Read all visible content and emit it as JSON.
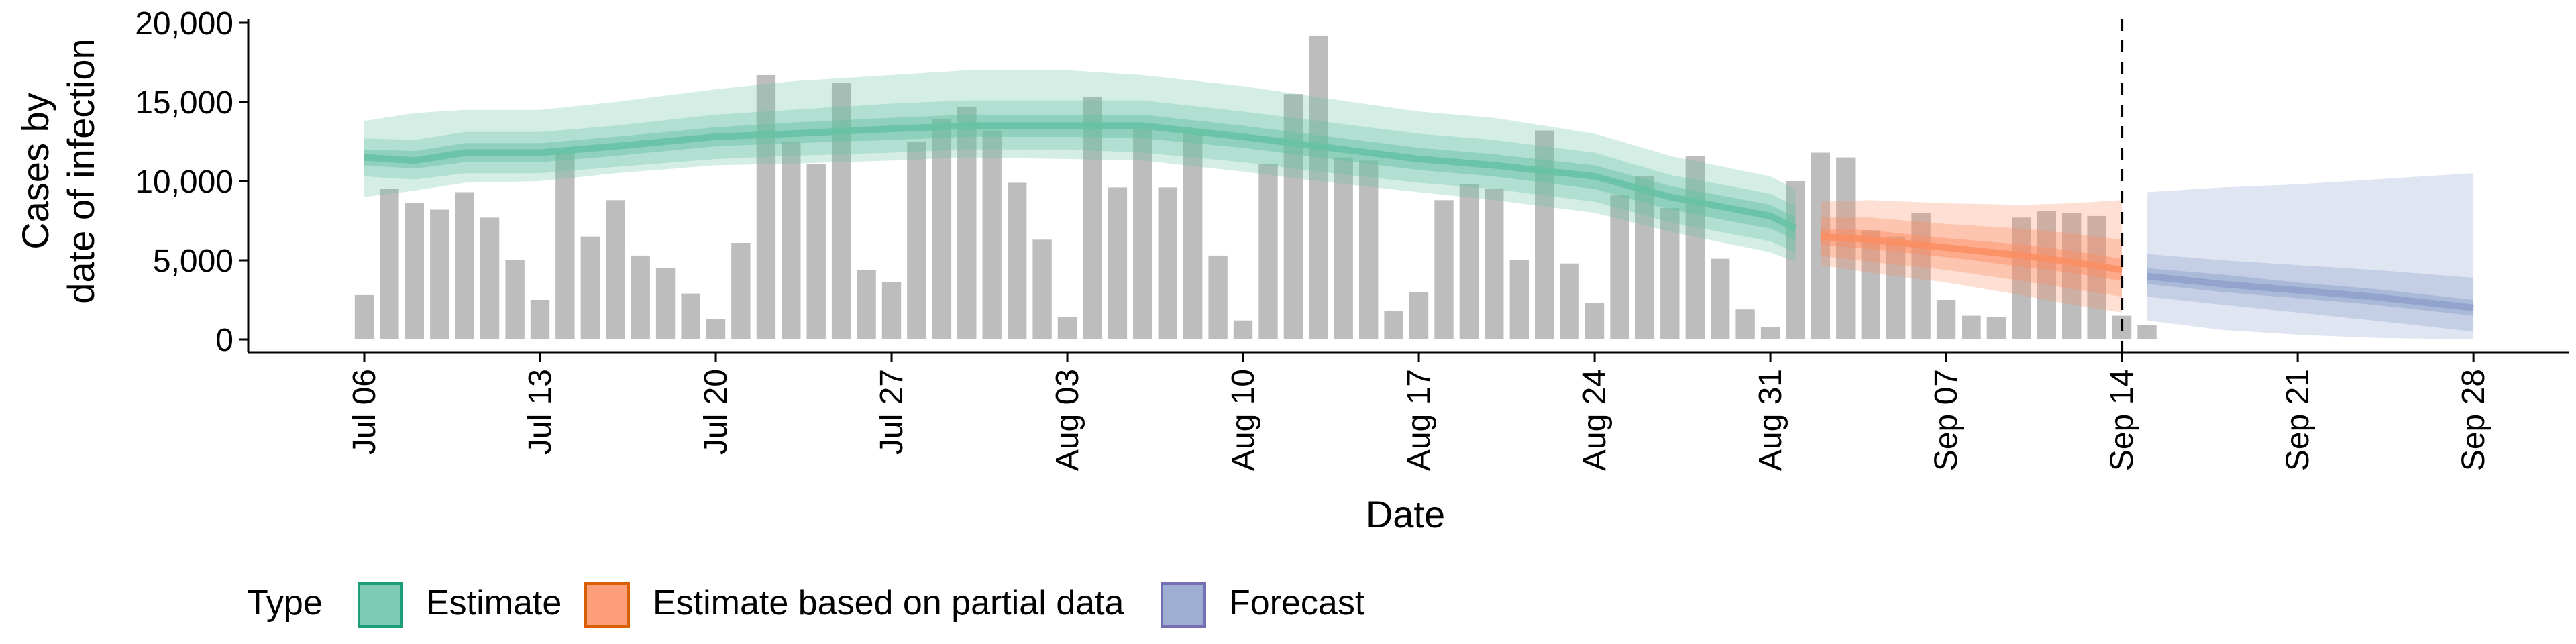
{
  "chart_data": {
    "type": "bar+ribbon",
    "xlabel": "Date",
    "ylabel_lines": [
      "Cases by",
      "date of infection"
    ],
    "ylim": [
      0,
      20000
    ],
    "y_ticks": [
      0,
      5000,
      10000,
      15000,
      20000
    ],
    "y_tick_labels": [
      "0",
      "5,000",
      "10,000",
      "15,000",
      "20,000"
    ],
    "x_start_date": "2020-07-06",
    "x_ticks": [
      0,
      7,
      14,
      21,
      28,
      35,
      42,
      49,
      56,
      63,
      70,
      77,
      84
    ],
    "x_tick_labels": [
      "Jul 06",
      "Jul 13",
      "Jul 20",
      "Jul 27",
      "Aug 03",
      "Aug 10",
      "Aug 17",
      "Aug 24",
      "Aug 31",
      "Sep 07",
      "Sep 14",
      "Sep 21",
      "Sep 28"
    ],
    "vline_day": 70,
    "grid": false,
    "bar_color": "#bdbdbd",
    "reported_cases": [
      2800,
      9500,
      8600,
      8200,
      9300,
      7700,
      5000,
      2500,
      11900,
      6500,
      8800,
      5300,
      4500,
      2900,
      1300,
      6100,
      16700,
      12500,
      11100,
      16200,
      4400,
      3600,
      12500,
      13900,
      14700,
      13200,
      9900,
      6300,
      1400,
      15300,
      9600,
      13300,
      9600,
      13200,
      5300,
      1200,
      11100,
      15500,
      19200,
      11500,
      11300,
      1800,
      3000,
      8800,
      9800,
      9500,
      5000,
      13200,
      4800,
      2300,
      9100,
      10300,
      8300,
      11600,
      5100,
      1900,
      800,
      10000,
      11800,
      11500,
      6900,
      6500,
      8000,
      2500,
      1500,
      1400,
      7700,
      8100,
      8000,
      7800,
      1500,
      900
    ],
    "legend_title": "Type",
    "legend_placement": "bottom",
    "series": [
      {
        "name": "Estimate",
        "fill": "#66c2a5",
        "line": "#1b9e77",
        "days": [
          0,
          2,
          4,
          7,
          10,
          14,
          17,
          21,
          24,
          28,
          31,
          35,
          38,
          42,
          45,
          49,
          52,
          56,
          57
        ],
        "median": [
          11500,
          11300,
          11800,
          11800,
          12200,
          12800,
          13000,
          13300,
          13500,
          13500,
          13500,
          12800,
          12200,
          11400,
          11000,
          10300,
          9000,
          7800,
          7000
        ],
        "ci50_low": [
          11000,
          10800,
          11200,
          11200,
          11600,
          12200,
          12400,
          12600,
          12800,
          12800,
          12700,
          12100,
          11500,
          10700,
          10300,
          9500,
          8200,
          7000,
          6300
        ],
        "ci50_high": [
          12000,
          11900,
          12400,
          12400,
          12800,
          13400,
          13700,
          14000,
          14200,
          14200,
          14200,
          13500,
          12900,
          12100,
          11700,
          11000,
          9700,
          8500,
          7700
        ],
        "ci90_low": [
          10300,
          10100,
          10500,
          10500,
          10900,
          11400,
          11600,
          11800,
          12000,
          12000,
          11800,
          11200,
          10600,
          9900,
          9500,
          8700,
          7400,
          6200,
          5500
        ],
        "ci90_high": [
          12700,
          12600,
          13100,
          13100,
          13500,
          14200,
          14500,
          14900,
          15100,
          15100,
          15100,
          14400,
          13800,
          13000,
          12600,
          11800,
          10400,
          9200,
          8400
        ],
        "ci_low": [
          9000,
          9400,
          9900,
          10000,
          10500,
          11000,
          11100,
          11300,
          11500,
          11400,
          11300,
          10600,
          10000,
          9300,
          8800,
          8000,
          6800,
          5500,
          4900
        ],
        "ci_high": [
          13800,
          14300,
          14500,
          14500,
          15000,
          15800,
          16300,
          16700,
          17000,
          17000,
          16700,
          16000,
          15300,
          14400,
          14000,
          13000,
          11600,
          10300,
          9500
        ]
      },
      {
        "name": "Estimate based on partial data",
        "fill": "#fc8d62",
        "line": "#d95f02",
        "days": [
          58,
          60,
          63,
          66,
          68,
          70
        ],
        "median": [
          6500,
          6300,
          5800,
          5300,
          4900,
          4400
        ],
        "ci50_low": [
          6000,
          5700,
          5200,
          4600,
          4200,
          3700
        ],
        "ci50_high": [
          7000,
          6900,
          6400,
          6000,
          5600,
          5100
        ],
        "ci90_low": [
          5300,
          4900,
          4400,
          3700,
          3200,
          2700
        ],
        "ci90_high": [
          7700,
          7700,
          7300,
          7000,
          6700,
          6300
        ],
        "ci_low": [
          4700,
          4200,
          3600,
          2800,
          2200,
          1700
        ],
        "ci_high": [
          8700,
          8800,
          8600,
          8500,
          8600,
          8800
        ]
      },
      {
        "name": "Forecast",
        "fill": "#8da0cb",
        "line": "#7570b3",
        "days": [
          71,
          74,
          77,
          80,
          84
        ],
        "median": [
          4000,
          3500,
          3100,
          2700,
          2000
        ],
        "ci50_low": [
          3500,
          3000,
          2600,
          2200,
          1500
        ],
        "ci50_high": [
          4500,
          4100,
          3600,
          3200,
          2500
        ],
        "ci90_low": [
          2700,
          2200,
          1700,
          1200,
          500
        ],
        "ci90_high": [
          5400,
          5000,
          4700,
          4400,
          3900
        ],
        "ci_low": [
          1200,
          600,
          300,
          100,
          0
        ],
        "ci_high": [
          9300,
          9600,
          9800,
          10100,
          10500
        ]
      }
    ]
  }
}
